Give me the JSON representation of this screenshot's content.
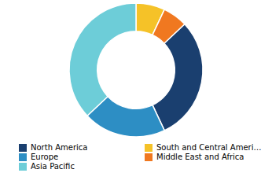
{
  "chart_data": {
    "type": "donut",
    "categories": [
      "South and Central America",
      "Middle East and Africa",
      "North America",
      "Europe",
      "Asia Pacific"
    ],
    "values": [
      7,
      6,
      30,
      20,
      37
    ],
    "colors": [
      "#f5c228",
      "#f07820",
      "#1a3f6f",
      "#2d8ec4",
      "#6dcdd8"
    ],
    "legend_labels": [
      "North America",
      "Europe",
      "Asia Pacific",
      "South and Central America",
      "Middle East and Africa"
    ],
    "legend": "bottom"
  }
}
